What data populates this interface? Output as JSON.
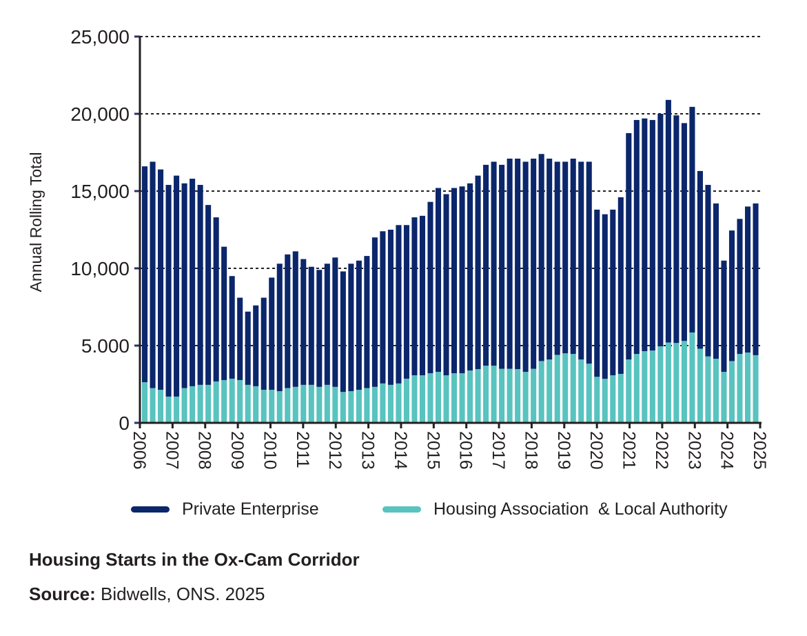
{
  "chart_data": {
    "type": "bar",
    "stacked": true,
    "title": "Housing Starts in the Ox-Cam Corridor",
    "source_label": "Source:",
    "source_text": "Bidwells, ONS. 2025",
    "ylabel": "Annual Rolling Total",
    "xlabel": "",
    "ylim": [
      0,
      25000
    ],
    "yticks": [
      0,
      5000,
      10000,
      15000,
      20000,
      25000
    ],
    "ytick_labels": [
      "0",
      "5.000",
      "10,000",
      "15,000",
      "20,000",
      "25,000"
    ],
    "xtick_labels": [
      "2006",
      "2007",
      "2008",
      "2009",
      "2010",
      "2011",
      "2012",
      "2013",
      "2014",
      "2015",
      "2016",
      "2017",
      "2018",
      "2019",
      "2020",
      "2021",
      "2022",
      "2023",
      "2024",
      "2025"
    ],
    "grid": "horizontal dotted",
    "legend_position": "bottom",
    "series": [
      {
        "name": "Private Enterprise",
        "color": "#0b266b",
        "values": [
          13970,
          14650,
          14260,
          13700,
          14300,
          13250,
          13430,
          12940,
          11640,
          10620,
          8630,
          6640,
          5330,
          4740,
          5230,
          5960,
          7260,
          8250,
          8650,
          8770,
          8140,
          7640,
          7570,
          7840,
          8370,
          7800,
          8250,
          8360,
          8550,
          9670,
          9850,
          10040,
          10250,
          9940,
          10220,
          10320,
          11090,
          11900,
          11720,
          11990,
          12090,
          12110,
          12520,
          13000,
          13200,
          13200,
          13600,
          13620,
          13600,
          13600,
          13400,
          13000,
          12500,
          12400,
          12640,
          12800,
          13070,
          10820,
          10650,
          10720,
          11430,
          14650,
          15140,
          15060,
          14920,
          15050,
          15700,
          14730,
          14100,
          14600,
          11500,
          11100,
          10050,
          7200,
          8450,
          8740,
          9450,
          9820
        ]
      },
      {
        "name": "Housing Association  & Local Authority",
        "color": "#58c3bf",
        "values": [
          2630,
          2250,
          2140,
          1700,
          1700,
          2250,
          2370,
          2460,
          2460,
          2680,
          2770,
          2860,
          2770,
          2460,
          2370,
          2140,
          2140,
          2050,
          2250,
          2330,
          2460,
          2460,
          2330,
          2460,
          2330,
          2000,
          2050,
          2140,
          2250,
          2330,
          2550,
          2460,
          2550,
          2860,
          3080,
          3080,
          3210,
          3300,
          3080,
          3210,
          3210,
          3390,
          3480,
          3700,
          3700,
          3500,
          3500,
          3480,
          3300,
          3500,
          4000,
          4100,
          4400,
          4500,
          4460,
          4100,
          3830,
          2980,
          2850,
          3080,
          3170,
          4100,
          4460,
          4640,
          4680,
          4950,
          5200,
          5170,
          5300,
          5850,
          4800,
          4300,
          4150,
          3300,
          4000,
          4460,
          4550,
          4380
        ]
      }
    ]
  }
}
